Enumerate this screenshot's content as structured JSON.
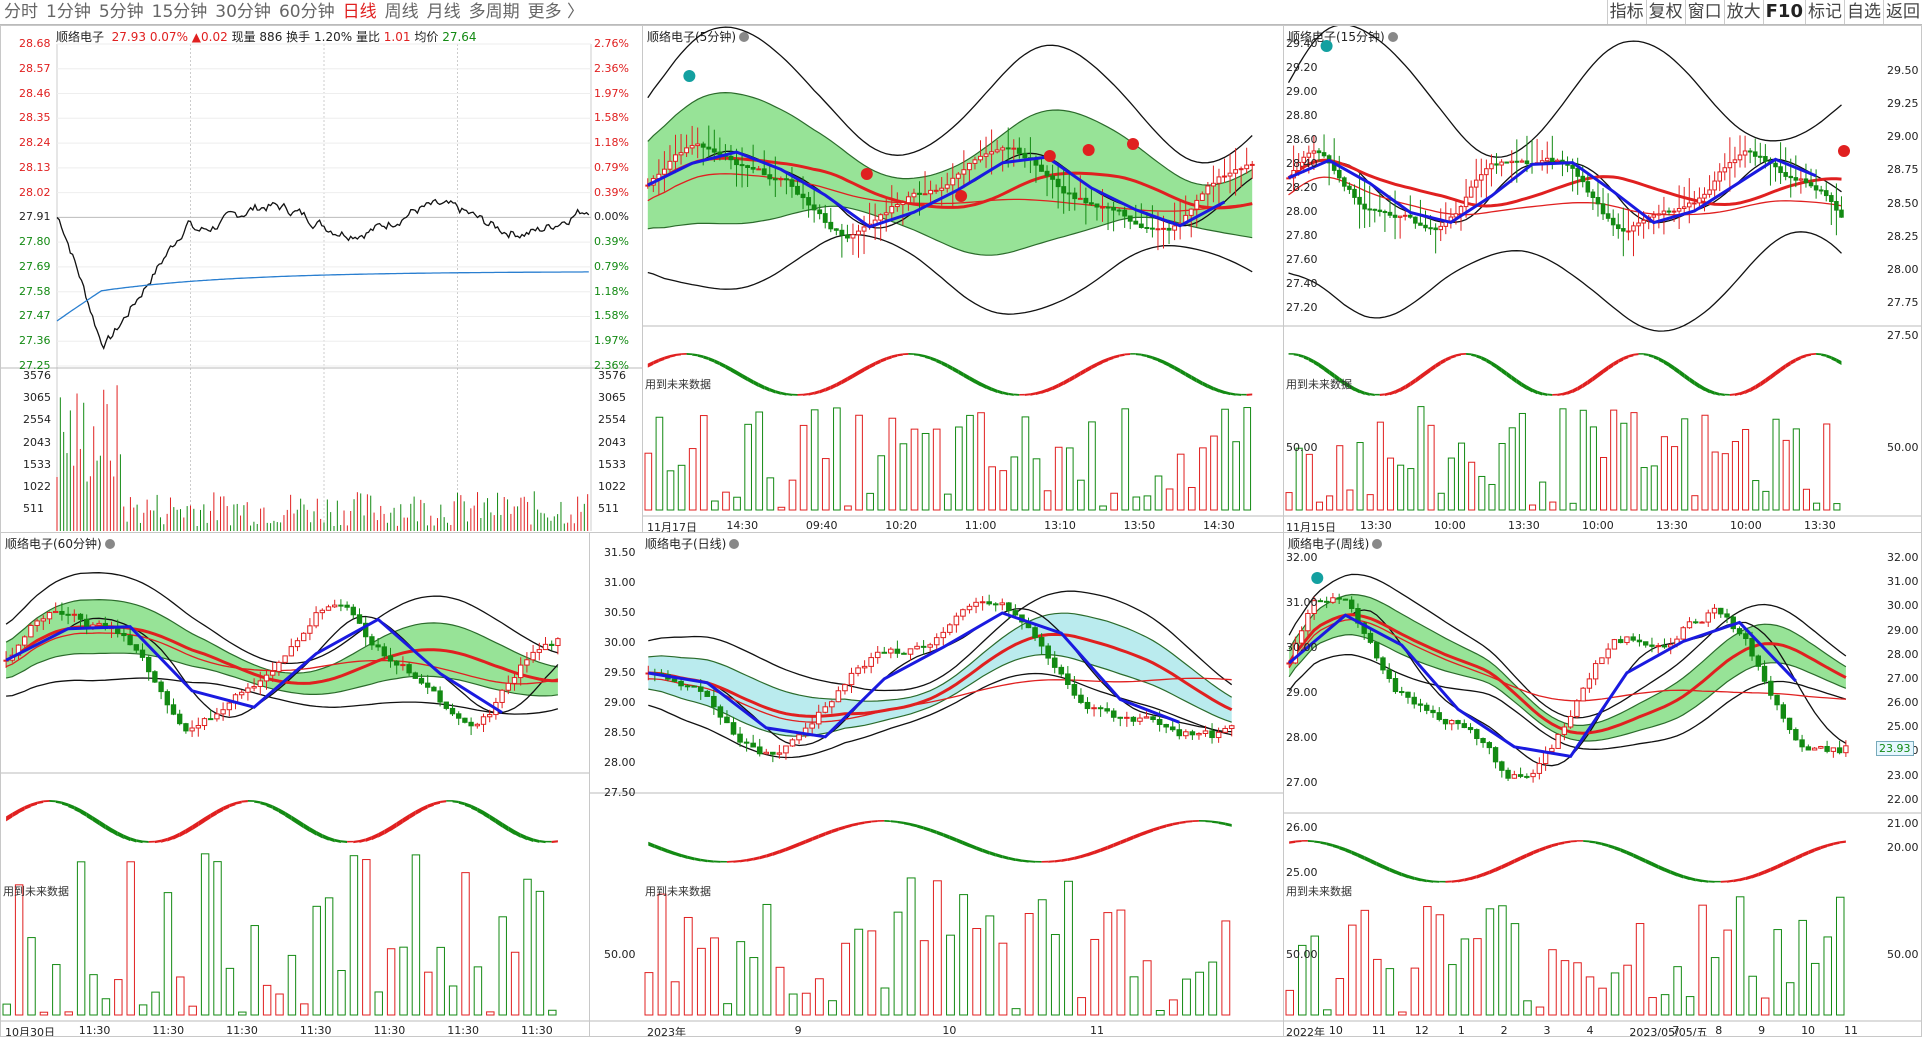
{
  "toolbar": {
    "periods": [
      "分时",
      "1分钟",
      "5分钟",
      "15分钟",
      "30分钟",
      "60分钟",
      "日线",
      "周线",
      "月线",
      "多周期",
      "更多 〉"
    ],
    "active_index": 6,
    "right_buttons": [
      "指标",
      "复权",
      "窗口",
      "放大",
      "F10",
      "标记",
      "自选",
      "返回"
    ]
  },
  "stock_name": "顺络电子",
  "future_label": "用到未来数据",
  "intraday": {
    "price": "27.93",
    "pct": "0.07%",
    "change": "▲0.02",
    "volume_label": "现量",
    "volume": "886",
    "turnover_label": "换手",
    "turnover": "1.20%",
    "ratio_label": "量比",
    "ratio": "1.01",
    "avg_label": "均价",
    "avg": "27.64",
    "price_ticks": [
      "28.68",
      "28.57",
      "28.46",
      "28.35",
      "28.24",
      "28.13",
      "28.02",
      "27.91",
      "27.80",
      "27.69",
      "27.58",
      "27.47",
      "27.36",
      "27.25"
    ],
    "pct_ticks": [
      "2.76%",
      "2.36%",
      "1.97%",
      "1.58%",
      "1.18%",
      "0.79%",
      "0.39%",
      "0.00%",
      "0.39%",
      "0.79%",
      "1.18%",
      "1.58%",
      "1.97%",
      "2.36%"
    ],
    "vol_ticks": [
      "3576",
      "3065",
      "2554",
      "2043",
      "1533",
      "1022",
      "511"
    ]
  },
  "panels": {
    "m5": {
      "title": "顺络电子(5分钟)",
      "x_ticks": [
        "11月17日",
        "14:30",
        "09:40",
        "10:20",
        "11:00",
        "13:10",
        "13:50",
        "14:30"
      ]
    },
    "m15": {
      "title": "顺络电子(15分钟)",
      "price_ticks": [
        "29.40",
        "29.20",
        "29.00",
        "28.80",
        "28.60",
        "28.40",
        "28.20",
        "28.00",
        "27.80",
        "27.60",
        "27.40",
        "27.20"
      ],
      "right_ticks": [
        "29.50",
        "29.25",
        "29.00",
        "28.75",
        "28.50",
        "28.25",
        "28.00",
        "27.75",
        "27.50"
      ],
      "osc_tick": "50.00",
      "right_osc_tick": "50.00",
      "x_ticks": [
        "11月15日",
        "13:30",
        "10:00",
        "13:30",
        "10:00",
        "13:30",
        "10:00",
        "13:30"
      ]
    },
    "m60": {
      "title": "顺络电子(60分钟)",
      "x_ticks": [
        "10月30日",
        "11:30",
        "11:30",
        "11:30",
        "11:30",
        "11:30",
        "11:30",
        "11:30"
      ]
    },
    "day": {
      "title": "顺络电子(日线)",
      "price_ticks": [
        "31.50",
        "31.00",
        "30.50",
        "30.00",
        "29.50",
        "29.00",
        "28.50",
        "28.00",
        "27.50"
      ],
      "osc_tick": "50.00",
      "x_ticks": [
        "2023年",
        "9",
        "10",
        "11"
      ]
    },
    "week": {
      "title": "顺络电子(周线)",
      "price_ticks": [
        "32.00",
        "31.00",
        "30.00",
        "29.00",
        "28.00",
        "27.00",
        "26.00",
        "25.00"
      ],
      "right_ticks": [
        "32.00",
        "31.00",
        "30.00",
        "29.00",
        "28.00",
        "27.00",
        "26.00",
        "25.00",
        "24.00",
        "23.00",
        "22.00",
        "21.00",
        "20.00"
      ],
      "current_price": "23.93",
      "osc_tick": "50.00",
      "right_osc_tick": "50.00",
      "x_ticks": [
        "2022年",
        "10",
        "11",
        "12",
        "1",
        "2",
        "3",
        "4",
        "2023/05/05/五",
        "7",
        "8",
        "9",
        "10",
        "11"
      ]
    }
  },
  "colors": {
    "up": "#e02020",
    "down": "#138a13",
    "zig": "#1a1ae0",
    "ma_red": "#e02020",
    "ma_black": "#111111",
    "band_green": "#7ddc7d",
    "band_cyan": "#a9e6ea",
    "avg_line": "#2a7fd0"
  }
}
